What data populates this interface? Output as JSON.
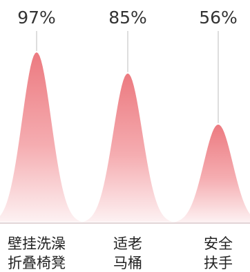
{
  "chart_data": {
    "type": "area",
    "categories": [
      [
        "壁挂洗澡",
        "折叠椅凳"
      ],
      [
        "适老",
        "马桶"
      ],
      [
        "安全",
        "扶手"
      ]
    ],
    "values": [
      97,
      85,
      56
    ],
    "value_labels": [
      "97%",
      "85%",
      "56%"
    ],
    "colors": {
      "peak_top": "#ec7a80",
      "peak_bottom": "#fdf1f2",
      "baseline": "#d9c5c8",
      "leader": "#c8c8c8"
    }
  }
}
